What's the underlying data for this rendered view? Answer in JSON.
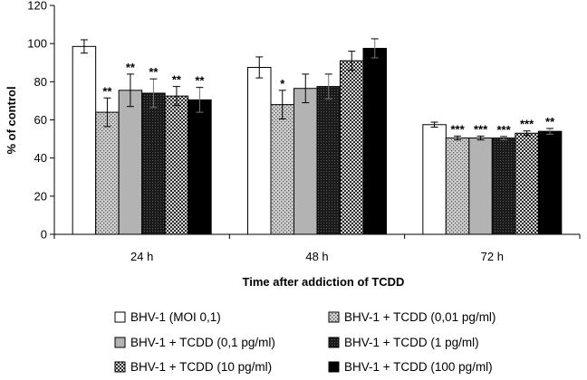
{
  "chart_data": {
    "type": "bar",
    "title": "",
    "xlabel": "Time after addiction of TCDD",
    "ylabel": "% of control",
    "ylim": [
      0,
      120
    ],
    "yticks": [
      0,
      20,
      40,
      60,
      80,
      100,
      120
    ],
    "grid": false,
    "legend_position": "bottom",
    "categories": [
      "24 h",
      "48 h",
      "72 h"
    ],
    "series": [
      {
        "name": "BHV-1 (MOI 0,1)",
        "values": [
          98.5,
          87.5,
          57.5
        ],
        "errors": [
          3.5,
          5.5,
          1.3
        ],
        "significance": [
          "",
          "",
          ""
        ],
        "pattern": "white"
      },
      {
        "name": "BHV-1 + TCDD (0,01 pg/ml)",
        "values": [
          64,
          68,
          50.5
        ],
        "errors": [
          7.5,
          7.5,
          1.0
        ],
        "significance": [
          "**",
          "*",
          "***"
        ],
        "pattern": "dots"
      },
      {
        "name": "BHV-1 + TCDD (0,1 pg/ml)",
        "values": [
          75.5,
          76.5,
          50.5
        ],
        "errors": [
          8.5,
          7.5,
          1.0
        ],
        "significance": [
          "**",
          "",
          "***"
        ],
        "pattern": "gray"
      },
      {
        "name": "BHV-1 + TCDD (1 pg/ml)",
        "values": [
          74,
          77.5,
          50.5
        ],
        "errors": [
          7.5,
          6.5,
          0.8
        ],
        "significance": [
          "**",
          "",
          "***"
        ],
        "pattern": "dark"
      },
      {
        "name": "BHV-1 + TCDD (10 pg/ml)",
        "values": [
          72.5,
          91,
          53
        ],
        "errors": [
          5.0,
          5.0,
          1.2
        ],
        "significance": [
          "**",
          "",
          "***"
        ],
        "pattern": "checker"
      },
      {
        "name": "BHV-1 + TCDD (100 pg/ml)",
        "values": [
          70.5,
          97.5,
          54
        ],
        "errors": [
          6.5,
          5.0,
          1.5
        ],
        "significance": [
          "**",
          "",
          "**"
        ],
        "pattern": "black"
      }
    ]
  }
}
